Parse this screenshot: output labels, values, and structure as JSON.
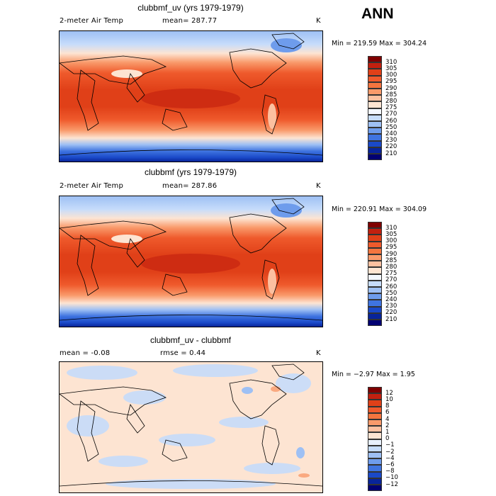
{
  "season": "ANN",
  "panels": [
    {
      "title": "clubbmf_uv (yrs 1979-1979)",
      "left_label": "2-meter Air Temp",
      "mid_label": "mean=  287.77",
      "unit": "K",
      "minmax": "Min = 219.59 Max = 304.24",
      "type": "field",
      "legend_labels": [
        "310",
        "305",
        "300",
        "295",
        "290",
        "285",
        "280",
        "275",
        "270",
        "260",
        "250",
        "240",
        "230",
        "220",
        "210"
      ],
      "legend_colors": [
        "#7f0000",
        "#c2200f",
        "#e04018",
        "#ef5a2c",
        "#f4753f",
        "#f99a6b",
        "#fcc0a0",
        "#fde4d2",
        "#f3f7ff",
        "#c6dcfb",
        "#9ec0f4",
        "#6e9cec",
        "#3f74e0",
        "#1a49c8",
        "#08249a",
        "#020072"
      ]
    },
    {
      "title": "clubbmf (yrs 1979-1979)",
      "left_label": "2-meter Air Temp",
      "mid_label": "mean=  287.86",
      "unit": "K",
      "minmax": "Min = 220.91 Max = 304.09",
      "type": "field",
      "legend_labels": [
        "310",
        "305",
        "300",
        "295",
        "290",
        "285",
        "280",
        "275",
        "270",
        "260",
        "250",
        "240",
        "230",
        "220",
        "210"
      ],
      "legend_colors": [
        "#7f0000",
        "#c2200f",
        "#e04018",
        "#ef5a2c",
        "#f4753f",
        "#f99a6b",
        "#fcc0a0",
        "#fde4d2",
        "#f3f7ff",
        "#c6dcfb",
        "#9ec0f4",
        "#6e9cec",
        "#3f74e0",
        "#1a49c8",
        "#08249a",
        "#020072"
      ]
    },
    {
      "title": "clubbmf_uv - clubbmf",
      "left_label": "mean =  -0.08",
      "mid_label": "rmse =   0.44",
      "unit": "K",
      "minmax": "Min =  −2.97 Max =    1.95",
      "type": "diff",
      "legend_labels": [
        "12",
        "10",
        "8",
        "6",
        "4",
        "2",
        "1",
        "0",
        "−1",
        "−2",
        "−4",
        "−6",
        "−8",
        "−10",
        "−12"
      ],
      "legend_colors": [
        "#7f0000",
        "#c2200f",
        "#e04018",
        "#ef5a2c",
        "#f4753f",
        "#f99a6b",
        "#fcc0a0",
        "#fde4d2",
        "#e8f0fc",
        "#c6dcfb",
        "#9ec0f4",
        "#6e9cec",
        "#3f74e0",
        "#1a49c8",
        "#08249a",
        "#020072"
      ]
    }
  ]
}
